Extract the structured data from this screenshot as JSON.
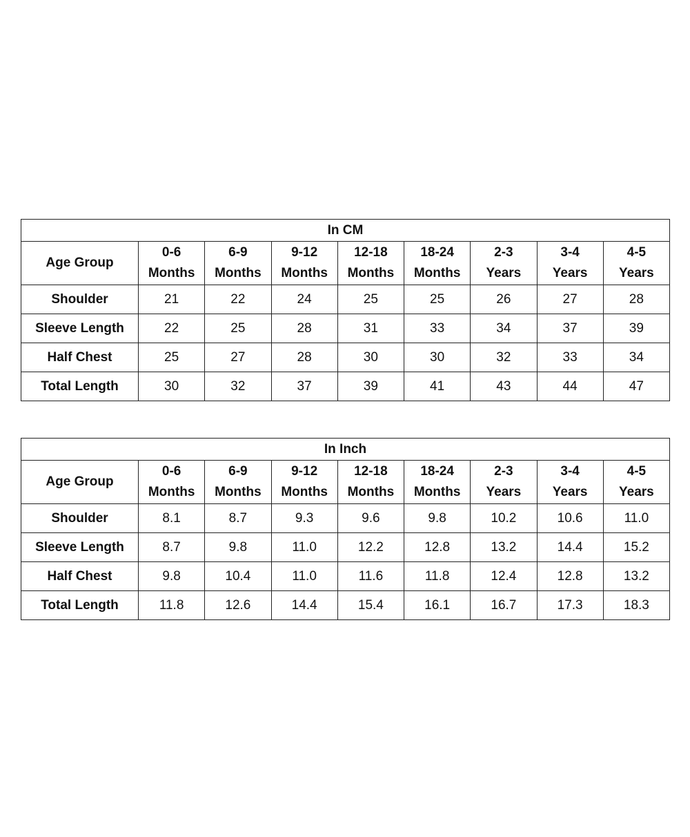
{
  "tables": [
    {
      "title": "In CM",
      "corner": "Age Group",
      "columns": [
        {
          "range": "0-6",
          "unit": "Months"
        },
        {
          "range": "6-9",
          "unit": "Months"
        },
        {
          "range": "9-12",
          "unit": "Months"
        },
        {
          "range": "12-18",
          "unit": "Months"
        },
        {
          "range": "18-24",
          "unit": "Months"
        },
        {
          "range": "2-3",
          "unit": "Years"
        },
        {
          "range": "3-4",
          "unit": "Years"
        },
        {
          "range": "4-5",
          "unit": "Years"
        }
      ],
      "rows": [
        {
          "label": "Shoulder",
          "values": [
            "21",
            "22",
            "24",
            "25",
            "25",
            "26",
            "27",
            "28"
          ]
        },
        {
          "label": "Sleeve Length",
          "values": [
            "22",
            "25",
            "28",
            "31",
            "33",
            "34",
            "37",
            "39"
          ]
        },
        {
          "label": "Half Chest",
          "values": [
            "25",
            "27",
            "28",
            "30",
            "30",
            "32",
            "33",
            "34"
          ]
        },
        {
          "label": "Total Length",
          "values": [
            "30",
            "32",
            "37",
            "39",
            "41",
            "43",
            "44",
            "47"
          ]
        }
      ]
    },
    {
      "title": "In Inch",
      "corner": "Age Group",
      "columns": [
        {
          "range": "0-6",
          "unit": "Months"
        },
        {
          "range": "6-9",
          "unit": "Months"
        },
        {
          "range": "9-12",
          "unit": "Months"
        },
        {
          "range": "12-18",
          "unit": "Months"
        },
        {
          "range": "18-24",
          "unit": "Months"
        },
        {
          "range": "2-3",
          "unit": "Years"
        },
        {
          "range": "3-4",
          "unit": "Years"
        },
        {
          "range": "4-5",
          "unit": "Years"
        }
      ],
      "rows": [
        {
          "label": "Shoulder",
          "values": [
            "8.1",
            "8.7",
            "9.3",
            "9.6",
            "9.8",
            "10.2",
            "10.6",
            "11.0"
          ]
        },
        {
          "label": "Sleeve Length",
          "values": [
            "8.7",
            "9.8",
            "11.0",
            "12.2",
            "12.8",
            "13.2",
            "14.4",
            "15.2"
          ]
        },
        {
          "label": "Half Chest",
          "values": [
            "9.8",
            "10.4",
            "11.0",
            "11.6",
            "11.8",
            "12.4",
            "12.8",
            "13.2"
          ]
        },
        {
          "label": "Total Length",
          "values": [
            "11.8",
            "12.6",
            "14.4",
            "15.4",
            "16.1",
            "16.7",
            "17.3",
            "18.3"
          ]
        }
      ]
    }
  ]
}
